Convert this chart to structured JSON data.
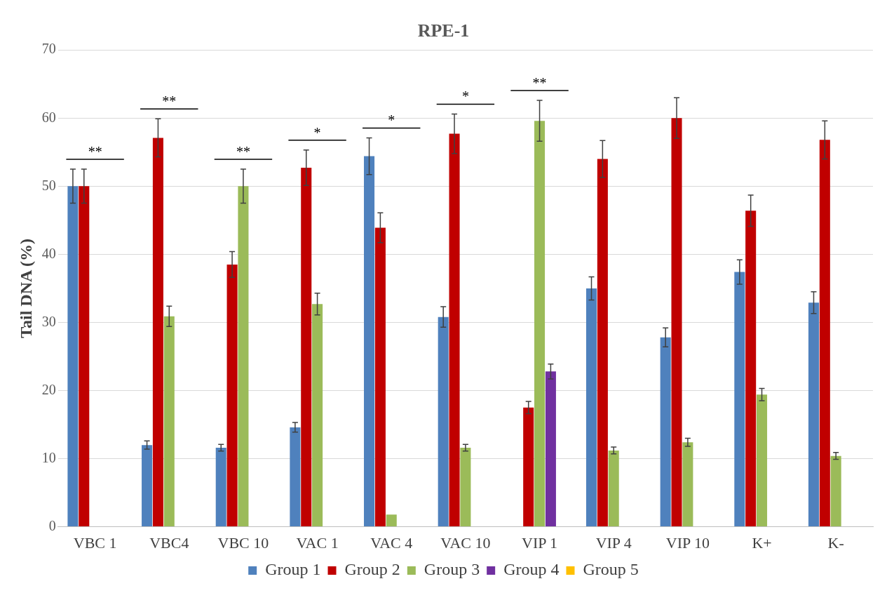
{
  "chart_data": {
    "type": "bar",
    "title": "RPE-1",
    "ylabel": "Tail DNA (%)",
    "categories": [
      "VBC 1",
      "VBC4",
      "VBC 10",
      "VAC 1",
      "VAC 4",
      "VAC 10",
      "VIP 1",
      "VIP 4",
      "VIP 10",
      "K+",
      "K-"
    ],
    "series": [
      {
        "name": "Group 1",
        "color": "#4f81bd",
        "values": [
          50,
          12,
          11.6,
          14.6,
          54.4,
          30.8,
          0,
          35,
          27.8,
          37.4,
          32.9
        ],
        "errors": [
          2.5,
          0.6,
          0.5,
          0.7,
          2.7,
          1.5,
          null,
          1.7,
          1.4,
          1.8,
          1.6
        ]
      },
      {
        "name": "Group 2",
        "color": "#c00000",
        "values": [
          50,
          57.1,
          38.5,
          52.7,
          43.9,
          57.7,
          17.5,
          54,
          60,
          46.4,
          56.8
        ],
        "errors": [
          2.5,
          2.8,
          1.9,
          2.6,
          2.2,
          2.9,
          0.9,
          2.7,
          3,
          2.3,
          2.8
        ]
      },
      {
        "name": "Group 3",
        "color": "#9bbb59",
        "values": [
          0,
          30.9,
          50,
          32.7,
          1.8,
          11.6,
          59.6,
          11.2,
          12.4,
          19.4,
          10.4
        ],
        "errors": [
          null,
          1.5,
          2.5,
          1.6,
          null,
          0.5,
          3,
          0.5,
          0.6,
          0.9,
          0.5
        ]
      },
      {
        "name": "Group 4",
        "color": "#7030a0",
        "values": [
          0,
          0,
          0,
          0,
          0,
          0,
          22.8,
          0,
          0,
          0,
          0
        ],
        "errors": [
          null,
          null,
          null,
          null,
          null,
          null,
          1.1,
          null,
          null,
          null,
          null
        ]
      },
      {
        "name": "Group 5",
        "color": "#ffc000",
        "values": [
          0,
          0,
          0,
          0,
          0,
          0,
          0,
          0,
          0,
          0,
          0
        ]
      }
    ],
    "ylim": [
      0,
      70
    ],
    "yticks": [
      0,
      10,
      20,
      30,
      40,
      50,
      60,
      70
    ],
    "grid": "y",
    "legend": "bottom",
    "annotations": [
      "**",
      "**",
      "**",
      "*",
      "*",
      "*",
      "**"
    ]
  }
}
